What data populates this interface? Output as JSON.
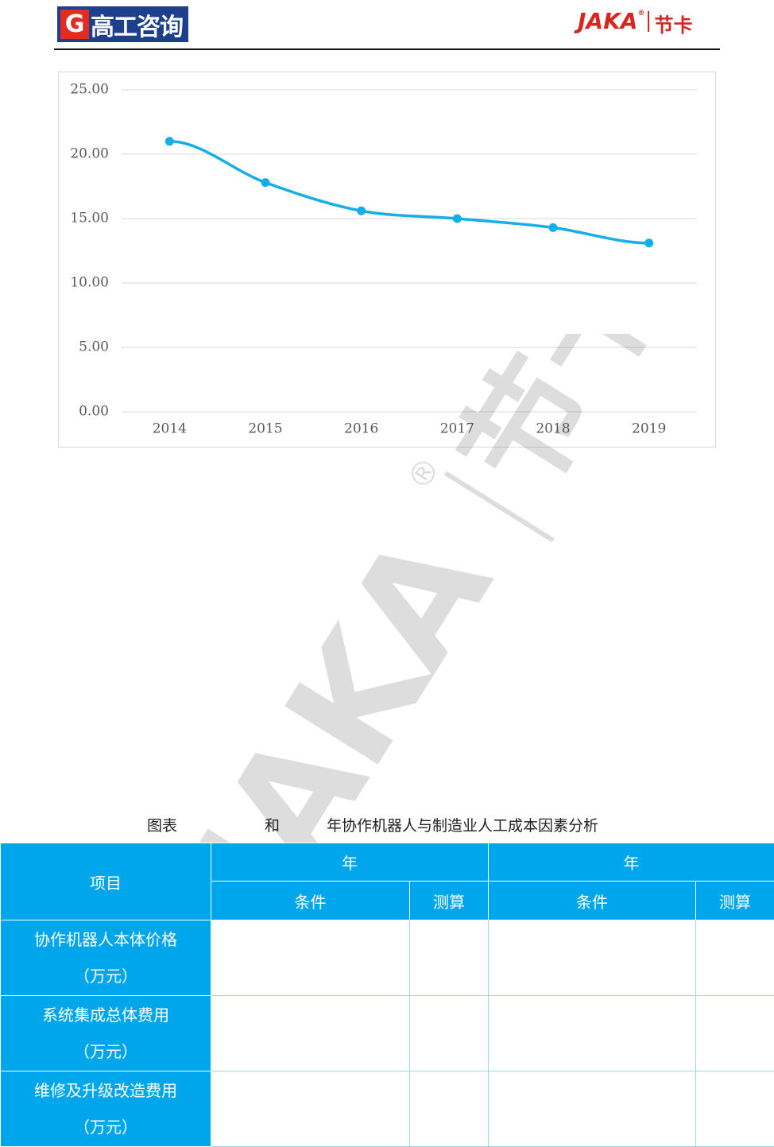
{
  "header": {
    "logo_mark": "G",
    "logo_text": "高工咨询",
    "brand": "JAKA",
    "brand_mark": "®",
    "brand_cn": "节卡"
  },
  "chart_data": {
    "type": "line",
    "categories": [
      "2014",
      "2015",
      "2016",
      "2017",
      "2018",
      "2019"
    ],
    "values": [
      21.0,
      17.8,
      15.6,
      15.0,
      14.3,
      13.1
    ],
    "color": "#16aee8",
    "ylim": [
      0,
      25
    ],
    "yticks": [
      {
        "value": 0,
        "label": "0.00"
      },
      {
        "value": 5,
        "label": "5.00"
      },
      {
        "value": 10,
        "label": "10.00"
      },
      {
        "value": 15,
        "label": "15.00"
      },
      {
        "value": 20,
        "label": "20.00"
      },
      {
        "value": 25,
        "label": "25.00"
      }
    ],
    "grid": true
  },
  "watermark": {
    "brand": "JAKA",
    "brand_mark": "®",
    "cn": "节卡"
  },
  "caption": [
    "图表",
    "和",
    "年协作机器人与制造业人工成本因素分析"
  ],
  "table": {
    "item": "项目",
    "years": [
      "年",
      "年"
    ],
    "sub": [
      "条件",
      "测算",
      "条件",
      "测算"
    ],
    "rows": [
      [
        "协作机器人本体价格",
        "（万元）"
      ],
      [
        "系统集成总体费用",
        "（万元）"
      ],
      [
        "维修及升级改造费用",
        "（万元）"
      ]
    ]
  }
}
